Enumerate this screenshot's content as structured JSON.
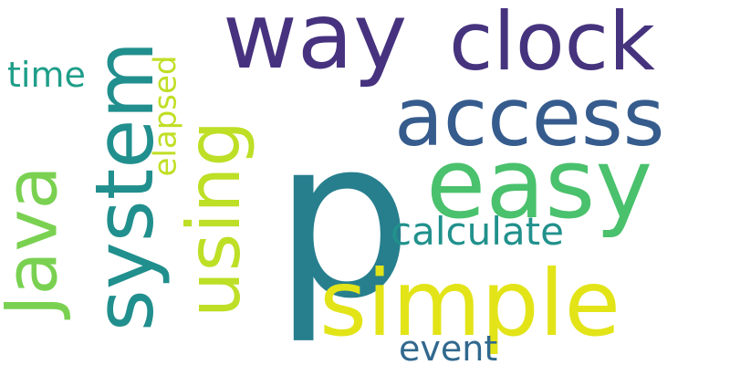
{
  "wordcloud": {
    "words": [
      {
        "text": "p",
        "color": "#277f8e"
      },
      {
        "text": "way",
        "color": "#46327e"
      },
      {
        "text": "clock",
        "color": "#46337e"
      },
      {
        "text": "access",
        "color": "#365c8d"
      },
      {
        "text": "easy",
        "color": "#4ac16d"
      },
      {
        "text": "simple",
        "color": "#e2e418"
      },
      {
        "text": "using",
        "color": "#bddf26"
      },
      {
        "text": "system",
        "color": "#218f8d"
      },
      {
        "text": "Java",
        "color": "#7ad151"
      },
      {
        "text": "elapsed",
        "color": "#c0df25"
      },
      {
        "text": "time",
        "color": "#1f9e89"
      },
      {
        "text": "calculate",
        "color": "#21918c"
      },
      {
        "text": "event",
        "color": "#31688e"
      }
    ]
  }
}
